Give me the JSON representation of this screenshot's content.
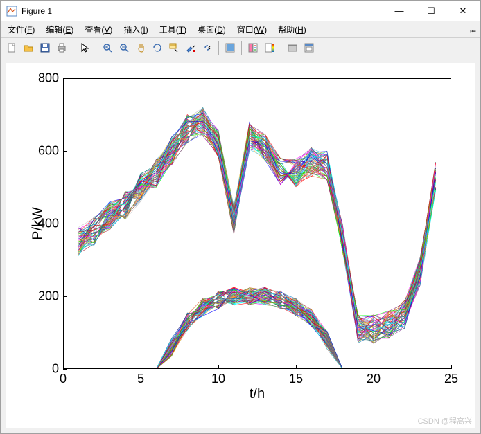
{
  "window": {
    "title": "Figure 1",
    "min": "—",
    "max": "☐",
    "close": "✕"
  },
  "menu": {
    "items": [
      {
        "label": "文件",
        "key": "F"
      },
      {
        "label": "编辑",
        "key": "E"
      },
      {
        "label": "查看",
        "key": "V"
      },
      {
        "label": "插入",
        "key": "I"
      },
      {
        "label": "工具",
        "key": "T"
      },
      {
        "label": "桌面",
        "key": "D"
      },
      {
        "label": "窗口",
        "key": "W"
      },
      {
        "label": "帮助",
        "key": "H"
      }
    ]
  },
  "toolbar": {
    "groups": [
      [
        "new",
        "open",
        "save",
        "print"
      ],
      [
        "pointer"
      ],
      [
        "zoom-in",
        "zoom-out",
        "pan",
        "rotate",
        "data-cursor",
        "brush",
        "link"
      ],
      [
        "colorbar"
      ],
      [
        "legend",
        "insert-colorbar"
      ],
      [
        "hide",
        "dock"
      ]
    ]
  },
  "chart": {
    "type": "line-multi",
    "xlabel": "t/h",
    "ylabel": "P/kW",
    "xlim": [
      0,
      25
    ],
    "ylim": [
      0,
      800
    ],
    "xticks": [
      0,
      5,
      10,
      15,
      20,
      25
    ],
    "yticks": [
      0,
      200,
      400,
      600,
      800
    ],
    "label_fontsize": 20,
    "tick_fontsize": 18,
    "background_color": "#ffffff",
    "axes_color": "#000000",
    "n_series_upper": 60,
    "n_series_lower": 60,
    "line_width": 0.6,
    "colors": [
      "#0072bd",
      "#d95319",
      "#edb120",
      "#7e2f8e",
      "#77ac30",
      "#4dbee0",
      "#a2142f",
      "#ff00ff",
      "#00ff00",
      "#0000ff",
      "#ff0000",
      "#00ffff",
      "#808000",
      "#800080",
      "#008080",
      "#c0c0c0"
    ],
    "upper_base_x": [
      1,
      2,
      3,
      4,
      5,
      6,
      7,
      8,
      9,
      10,
      11,
      12,
      13,
      14,
      15,
      16,
      17,
      18,
      19,
      20,
      21,
      22,
      23,
      24
    ],
    "upper_base_y": [
      350,
      380,
      420,
      450,
      500,
      540,
      600,
      660,
      680,
      620,
      410,
      640,
      610,
      540,
      540,
      570,
      560,
      360,
      110,
      110,
      120,
      150,
      270,
      530
    ],
    "upper_noise": 40,
    "lower_base_x": [
      1,
      2,
      3,
      4,
      5,
      6,
      7,
      8,
      9,
      10,
      11,
      12,
      13,
      14,
      15,
      16,
      17,
      18,
      19,
      20,
      21,
      22,
      23,
      24
    ],
    "lower_base_y": [
      0,
      0,
      0,
      0,
      0,
      0,
      60,
      130,
      170,
      190,
      200,
      200,
      200,
      190,
      170,
      140,
      80,
      0,
      0,
      0,
      0,
      0,
      0,
      0
    ],
    "lower_noise": 25
  },
  "watermark": "CSDN @程高兴"
}
